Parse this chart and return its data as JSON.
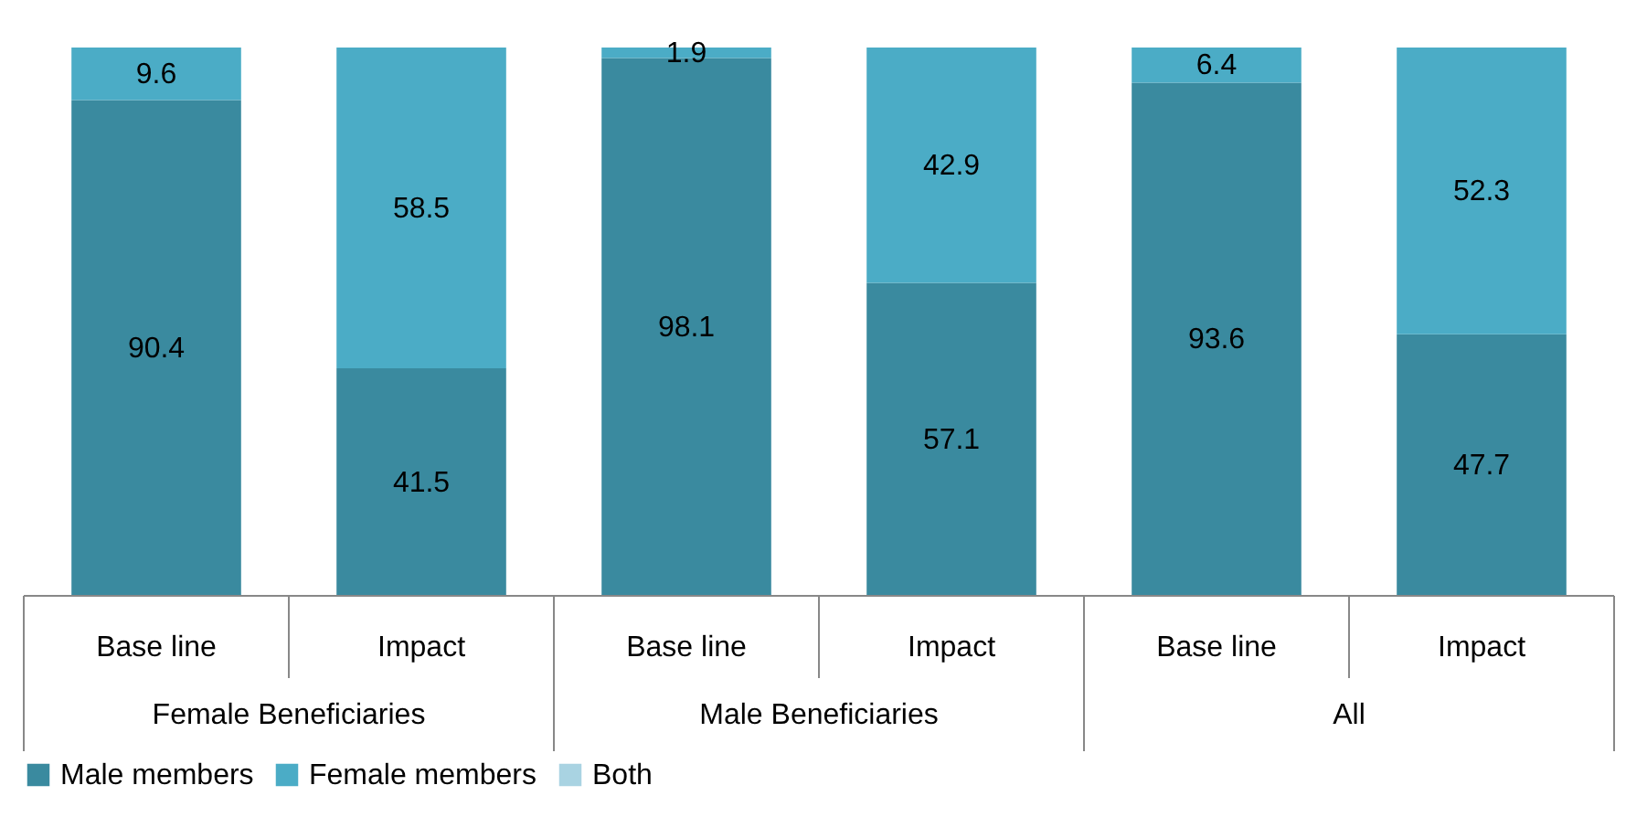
{
  "chart_data": {
    "type": "bar",
    "stacked": true,
    "data_labels": true,
    "legend": "bottom",
    "categories": [
      "Base line",
      "Impact",
      "Base line",
      "Impact",
      "Base line",
      "Impact"
    ],
    "annotations": [
      "Female Beneficiaries",
      "Male Beneficiaries",
      "All"
    ],
    "series": [
      {
        "name": "Male members",
        "color": "#3a8a9f",
        "values": [
          90.4,
          41.5,
          98.1,
          57.1,
          93.6,
          47.7
        ]
      },
      {
        "name": "Female members",
        "color": "#4bacc6",
        "values": [
          9.6,
          58.5,
          1.9,
          42.9,
          6.4,
          52.3
        ]
      },
      {
        "name": "Both",
        "color": "#a9d3e2",
        "values": [
          null,
          null,
          null,
          null,
          null,
          null
        ]
      }
    ]
  }
}
